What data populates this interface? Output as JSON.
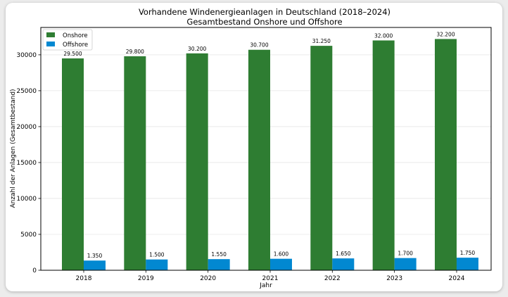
{
  "chart_data": {
    "type": "bar",
    "title": "Vorhandene Windenergieanlagen in Deutschland (2018–2024)",
    "subtitle": "Gesamtbestand Onshore und Offshore",
    "xlabel": "Jahr",
    "ylabel": "Anzahl der Anlagen (Gesamtbestand)",
    "categories": [
      "2018",
      "2019",
      "2020",
      "2021",
      "2022",
      "2023",
      "2024"
    ],
    "series": [
      {
        "name": "Onshore",
        "color": "#2e7d32",
        "values": [
          29500,
          29800,
          30200,
          30700,
          31250,
          32000,
          32200
        ],
        "labels": [
          "29.500",
          "29.800",
          "30.200",
          "30.700",
          "31.250",
          "32.000",
          "32.200"
        ]
      },
      {
        "name": "Offshore",
        "color": "#0288d1",
        "values": [
          1350,
          1500,
          1550,
          1600,
          1650,
          1700,
          1750
        ],
        "labels": [
          "1.350",
          "1.500",
          "1.550",
          "1.600",
          "1.650",
          "1.700",
          "1.750"
        ]
      }
    ],
    "yticks": [
      "0",
      "5000",
      "10000",
      "15000",
      "20000",
      "25000",
      "30000"
    ],
    "ylim": [
      0,
      33810
    ],
    "grid": "horizontal",
    "legend_position": "top-left"
  }
}
